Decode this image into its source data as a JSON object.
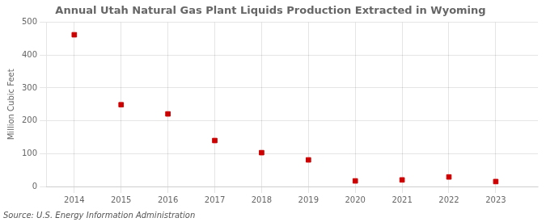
{
  "chart_data": {
    "type": "scatter",
    "title": "Annual Utah Natural Gas Plant Liquids Production Extracted in Wyoming",
    "ylabel": "Million Cubic Feet",
    "annotation": "Source: U.S. Energy Information Administration",
    "x": [
      2014,
      2015,
      2016,
      2017,
      2018,
      2019,
      2020,
      2021,
      2022,
      2023
    ],
    "values": [
      462,
      249,
      221,
      140,
      103,
      81,
      17,
      20,
      29,
      15
    ],
    "color": "#cc0000",
    "marker": "square",
    "xlim": [
      2013.4,
      2023.9
    ],
    "xticks": [
      2014,
      2015,
      2016,
      2017,
      2018,
      2019,
      2020,
      2021,
      2022,
      2023
    ],
    "ylim": [
      0,
      500
    ],
    "yticks": [
      0,
      100,
      200,
      300,
      400,
      500
    ],
    "grid": true
  }
}
